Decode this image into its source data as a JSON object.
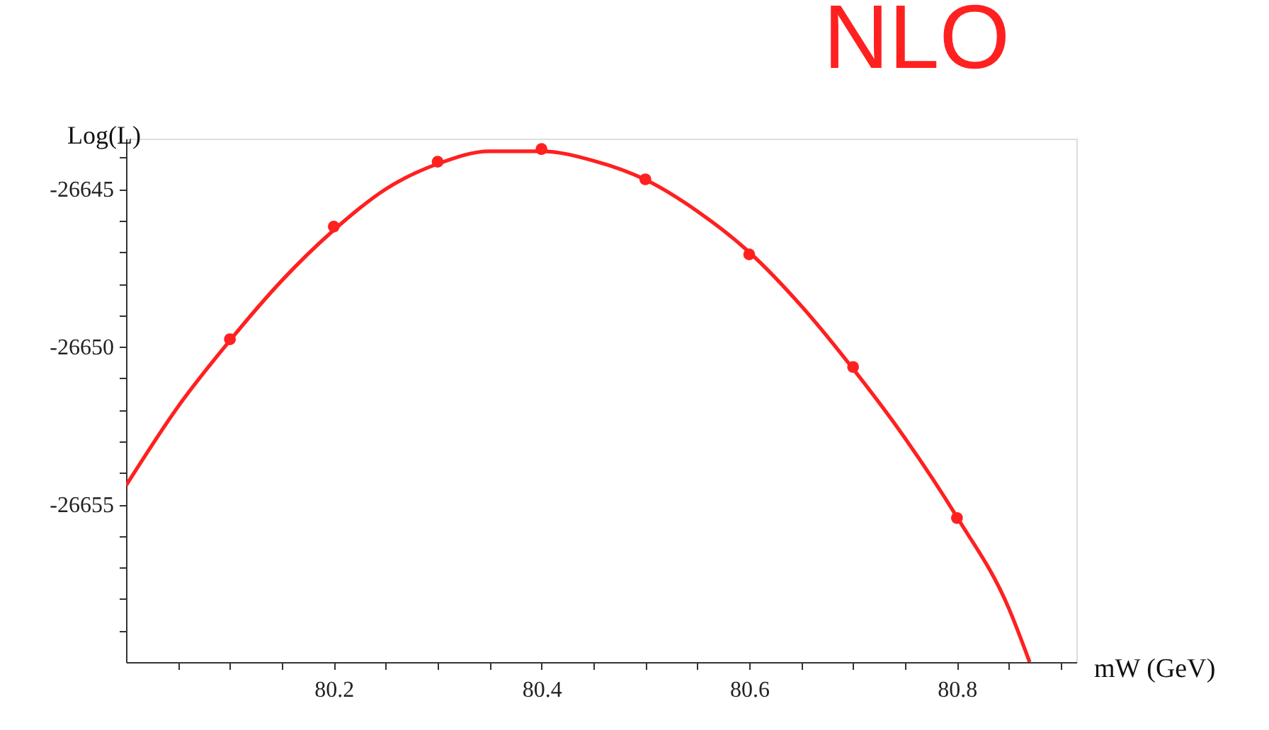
{
  "chart_data": {
    "type": "scatter",
    "title": "NLO",
    "xlabel": "mW (GeV)",
    "ylabel": "Log(L)",
    "xlim": [
      80.0,
      80.915
    ],
    "ylim": [
      -26660,
      -26643.4
    ],
    "xticks": [
      {
        "value": 80.05,
        "label": null
      },
      {
        "value": 80.1,
        "label": null
      },
      {
        "value": 80.15,
        "label": null
      },
      80.2,
      {
        "value": 80.25,
        "label": null
      },
      {
        "value": 80.3,
        "label": null
      },
      {
        "value": 80.35,
        "label": null
      },
      80.4,
      {
        "value": 80.45,
        "label": null
      },
      {
        "value": 80.5,
        "label": null
      },
      {
        "value": 80.55,
        "label": null
      },
      80.6,
      {
        "value": 80.65,
        "label": null
      },
      {
        "value": 80.7,
        "label": null
      },
      {
        "value": 80.75,
        "label": null
      },
      80.8,
      {
        "value": 80.85,
        "label": null
      },
      {
        "value": 80.9,
        "label": null
      }
    ],
    "yticks": [
      {
        "value": -26644,
        "label": null
      },
      -26645,
      {
        "value": -26646,
        "label": null
      },
      {
        "value": -26647,
        "label": null
      },
      {
        "value": -26648,
        "label": null
      },
      {
        "value": -26649,
        "label": null
      },
      -26650,
      {
        "value": -26651,
        "label": null
      },
      {
        "value": -26652,
        "label": null
      },
      {
        "value": -26653,
        "label": null
      },
      {
        "value": -26654,
        "label": null
      },
      -26655,
      {
        "value": -26656,
        "label": null
      },
      {
        "value": -26657,
        "label": null
      },
      {
        "value": -26658,
        "label": null
      },
      {
        "value": -26659,
        "label": null
      }
    ],
    "grid": false,
    "x": [
      80.1,
      80.2,
      80.3,
      80.4,
      80.5,
      80.6,
      80.7,
      80.8
    ],
    "series": [
      {
        "type": "scatter",
        "marker": "circle",
        "color": "#ff2020",
        "values": [
          -26649.76,
          -26646.19,
          -26644.13,
          -26643.73,
          -26644.69,
          -26647.07,
          -26650.64,
          -26655.43
        ]
      },
      {
        "type": "line",
        "color": "#ff2020",
        "line_style": "solid",
        "marker": "none",
        "x": [
          80.0,
          80.05,
          80.1,
          80.15,
          80.2,
          80.25,
          80.3,
          80.35,
          80.4,
          80.45,
          80.5,
          80.55,
          80.6,
          80.65,
          80.7,
          80.75,
          80.8,
          80.85,
          80.87
        ],
        "values": [
          -26654.4,
          -26651.9,
          -26649.8,
          -26647.9,
          -26646.3,
          -26645.0,
          -26644.2,
          -26643.8,
          -26643.8,
          -26644.1,
          -26644.7,
          -26645.7,
          -26647.0,
          -26648.7,
          -26650.7,
          -26652.9,
          -26655.4,
          -26658.3,
          -26660.0
        ]
      }
    ]
  }
}
